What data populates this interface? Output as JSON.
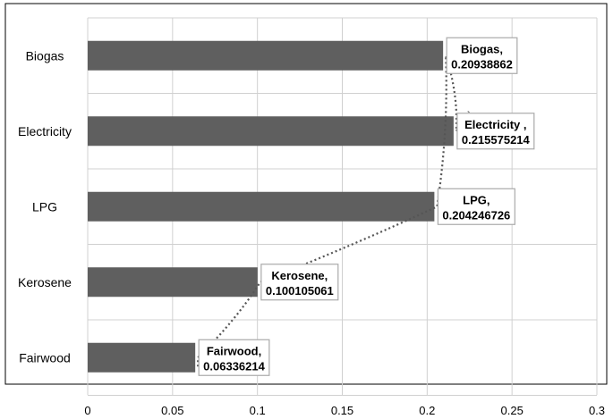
{
  "chart_data": {
    "type": "bar",
    "orientation": "horizontal",
    "categories": [
      "Biogas",
      "Electricity",
      "LPG",
      "Kerosene",
      "Fairwood"
    ],
    "values": [
      0.20938862,
      0.215575214,
      0.204246726,
      0.100105061,
      0.06336214
    ],
    "data_labels": [
      [
        "Biogas,",
        "0.20938862"
      ],
      [
        "Electricity ,",
        "0.215575214"
      ],
      [
        "LPG,",
        "0.204246726"
      ],
      [
        "Kerosene,",
        "0.100105061"
      ],
      [
        "Fairwood,",
        "0.06336214"
      ]
    ],
    "x_ticks": [
      "0",
      "0.05",
      "0.1",
      "0.15",
      "0.2",
      "0.25",
      "0.3"
    ],
    "xlim": [
      0,
      0.3
    ],
    "grid": true,
    "trendline": "dotted",
    "title": "",
    "xlabel": "",
    "ylabel": "",
    "colors": {
      "bar": "#5f5f5f",
      "grid": "#d0d0d0",
      "border": "#000000",
      "trendline": "#555555",
      "label_border": "#aaaaaa"
    }
  }
}
